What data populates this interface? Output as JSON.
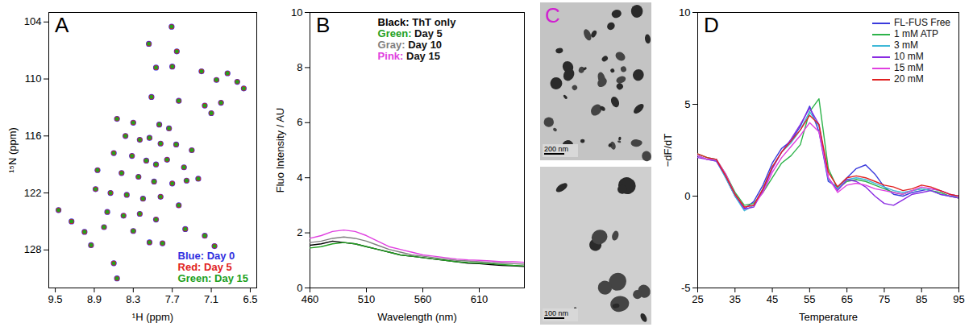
{
  "chart_data": [
    {
      "type": "scatter",
      "panel_label": "A",
      "marker": "circle",
      "grid": false,
      "legend": "bottom-right",
      "x_label": "¹H (ppm)",
      "y_label": "¹⁵N (ppm)",
      "xlim": [
        9.6,
        6.4
      ],
      "xticks": [
        9.5,
        8.9,
        8.3,
        7.7,
        7.1,
        6.5
      ],
      "ylim": [
        132,
        103
      ],
      "yticks": [
        104,
        110,
        116,
        122,
        128
      ],
      "series": [
        {
          "name": "Blue: Day 0",
          "color": "#3030e0",
          "x": [
            7.71,
            8.06,
            7.63,
            7.95,
            7.7,
            7.25,
            7.02,
            6.85,
            6.7,
            6.6,
            8.02,
            7.6,
            7.2,
            6.95,
            7.1,
            8.55,
            8.3,
            7.9,
            7.75,
            8.42,
            8.2,
            8.05,
            7.88,
            7.64,
            7.4,
            8.6,
            8.32,
            8.1,
            7.95,
            7.78,
            7.52,
            8.85,
            8.48,
            8.22,
            7.98,
            7.7,
            7.48,
            7.3,
            8.88,
            8.65,
            8.4,
            8.15,
            7.88,
            7.6,
            8.7,
            8.45,
            8.2,
            7.95,
            8.75,
            8.3,
            7.5,
            9.45,
            9.25,
            9.05,
            8.6,
            8.55,
            8.95,
            8.05,
            7.85,
            7.05,
            7.2
          ],
          "y": [
            104.5,
            106.3,
            107.1,
            108.8,
            108.7,
            109.2,
            110.1,
            109.4,
            110.3,
            111.0,
            111.9,
            112.3,
            112.8,
            112.5,
            113.6,
            114.2,
            114.6,
            114.8,
            115.2,
            116.0,
            116.4,
            116.2,
            116.8,
            116.9,
            117.5,
            117.8,
            118.1,
            118.6,
            119.0,
            118.5,
            119.3,
            119.6,
            119.9,
            120.3,
            120.8,
            121.0,
            120.7,
            120.5,
            121.6,
            122.0,
            122.2,
            122.6,
            122.4,
            123.3,
            124.0,
            124.4,
            124.2,
            124.8,
            125.6,
            126.0,
            125.8,
            123.8,
            125.0,
            126.1,
            129.4,
            131.0,
            127.5,
            127.2,
            127.3,
            127.6,
            126.5
          ]
        },
        {
          "name": "Red: Day 5",
          "color": "#e02020",
          "x": [
            7.71,
            8.06,
            7.63,
            7.95,
            7.7,
            7.25,
            7.02,
            6.85,
            6.7,
            6.6,
            8.02,
            7.6,
            7.2,
            6.95,
            7.1,
            8.55,
            8.3,
            7.9,
            7.75,
            8.42,
            8.2,
            8.05,
            7.88,
            7.64,
            7.4,
            8.6,
            8.32,
            8.1,
            7.95,
            7.78,
            7.52,
            8.85,
            8.48,
            8.22,
            7.98,
            7.7,
            7.48,
            7.3,
            8.88,
            8.65,
            8.4,
            8.15,
            7.88,
            7.6,
            8.7,
            8.45,
            8.2,
            7.95,
            8.75,
            8.3,
            7.5,
            9.45,
            9.25,
            9.05,
            8.6,
            8.55,
            8.95,
            8.05,
            7.85,
            7.05,
            7.2
          ],
          "y": [
            104.5,
            106.3,
            107.1,
            108.8,
            108.7,
            109.2,
            110.1,
            109.4,
            110.3,
            111.0,
            111.9,
            112.3,
            112.8,
            112.5,
            113.6,
            114.2,
            114.6,
            114.8,
            115.2,
            116.0,
            116.4,
            116.2,
            116.8,
            116.9,
            117.5,
            117.8,
            118.1,
            118.6,
            119.0,
            118.5,
            119.3,
            119.6,
            119.9,
            120.3,
            120.8,
            121.0,
            120.7,
            120.5,
            121.6,
            122.0,
            122.2,
            122.6,
            122.4,
            123.3,
            124.0,
            124.4,
            124.2,
            124.8,
            125.6,
            126.0,
            125.8,
            123.8,
            125.0,
            126.1,
            129.4,
            131.0,
            127.5,
            127.2,
            127.3,
            127.6,
            126.5
          ]
        },
        {
          "name": "Green: Day 15",
          "color": "#20a020",
          "x": [
            7.71,
            8.06,
            7.63,
            7.95,
            7.7,
            7.25,
            7.02,
            6.85,
            6.7,
            6.6,
            8.02,
            7.6,
            7.2,
            6.95,
            7.1,
            8.55,
            8.3,
            7.9,
            7.75,
            8.42,
            8.2,
            8.05,
            7.88,
            7.64,
            7.4,
            8.6,
            8.32,
            8.1,
            7.95,
            7.78,
            7.52,
            8.85,
            8.48,
            8.22,
            7.98,
            7.7,
            7.48,
            7.3,
            8.88,
            8.65,
            8.4,
            8.15,
            7.88,
            7.6,
            8.7,
            8.45,
            8.2,
            7.95,
            8.75,
            8.3,
            7.5,
            9.45,
            9.25,
            9.05,
            8.6,
            8.55,
            8.95,
            8.05,
            7.85,
            7.05,
            7.2
          ],
          "y": [
            104.5,
            106.3,
            107.1,
            108.8,
            108.7,
            109.2,
            110.1,
            109.4,
            110.3,
            111.0,
            111.9,
            112.3,
            112.8,
            112.5,
            113.6,
            114.2,
            114.6,
            114.8,
            115.2,
            116.0,
            116.4,
            116.2,
            116.8,
            116.9,
            117.5,
            117.8,
            118.1,
            118.6,
            119.0,
            118.5,
            119.3,
            119.6,
            119.9,
            120.3,
            120.8,
            121.0,
            120.7,
            120.5,
            121.6,
            122.0,
            122.2,
            122.6,
            122.4,
            123.3,
            124.0,
            124.4,
            124.2,
            124.8,
            125.6,
            126.0,
            125.8,
            123.8,
            125.0,
            126.1,
            129.4,
            131.0,
            127.5,
            127.2,
            127.3,
            127.6,
            126.5
          ]
        }
      ]
    },
    {
      "type": "line",
      "panel_label": "B",
      "grid": false,
      "legend": "top",
      "line_style": "solid",
      "x_label": "Wavelength (nm)",
      "y_label": "Fluo Intensity / AU",
      "xlim": [
        460,
        650
      ],
      "xticks": [
        460,
        510,
        560,
        610
      ],
      "ylim": [
        0,
        10
      ],
      "yticks": [
        0,
        2,
        4,
        6,
        8,
        10
      ],
      "x": [
        460,
        470,
        480,
        490,
        500,
        510,
        520,
        530,
        540,
        550,
        560,
        570,
        580,
        590,
        600,
        610,
        620,
        630,
        640,
        650
      ],
      "series": [
        {
          "name": "Black: ThT only",
          "color": "#000000",
          "values": [
            1.55,
            1.6,
            1.7,
            1.65,
            1.6,
            1.5,
            1.4,
            1.3,
            1.2,
            1.15,
            1.1,
            1.05,
            1.0,
            0.95,
            0.9,
            0.88,
            0.85,
            0.82,
            0.8,
            0.78
          ]
        },
        {
          "name": "Green: Day 5",
          "color": "#22a022",
          "values": [
            1.45,
            1.5,
            1.6,
            1.65,
            1.6,
            1.5,
            1.4,
            1.3,
            1.2,
            1.15,
            1.1,
            1.05,
            1.0,
            0.95,
            0.92,
            0.9,
            0.88,
            0.85,
            0.82,
            0.8
          ]
        },
        {
          "name": "Gray: Day 10",
          "color": "#808080",
          "values": [
            1.65,
            1.7,
            1.8,
            1.85,
            1.8,
            1.7,
            1.55,
            1.4,
            1.3,
            1.2,
            1.15,
            1.1,
            1.05,
            1.0,
            0.98,
            0.95,
            0.92,
            0.9,
            0.88,
            0.86
          ]
        },
        {
          "name": "Pink: Day 15",
          "color": "#e040e0",
          "values": [
            1.8,
            1.9,
            2.05,
            2.1,
            2.05,
            1.9,
            1.7,
            1.5,
            1.4,
            1.3,
            1.2,
            1.15,
            1.1,
            1.05,
            1.02,
            1.0,
            0.98,
            0.95,
            0.95,
            0.93
          ]
        }
      ]
    },
    {
      "type": "image",
      "panel_label": "C",
      "images": [
        {
          "scale_bar": "200 nm"
        },
        {
          "scale_bar": "100 nm"
        }
      ]
    },
    {
      "type": "line",
      "panel_label": "D",
      "grid": false,
      "legend": "top-right",
      "line_style": "solid",
      "x_label": "Temperature",
      "y_label": "−dF/dT",
      "xlim": [
        25,
        95
      ],
      "xticks": [
        25,
        35,
        45,
        55,
        65,
        75,
        85,
        95
      ],
      "ylim": [
        -5,
        10
      ],
      "yticks": [
        -5,
        0,
        5,
        10
      ],
      "x": [
        25,
        27.5,
        30,
        32.5,
        35,
        37.5,
        40,
        42.5,
        45,
        47.5,
        50,
        52.5,
        55,
        57.5,
        60,
        62.5,
        65,
        67.5,
        70,
        72.5,
        75,
        77.5,
        80,
        82.5,
        85,
        87.5,
        90,
        92.5,
        95
      ],
      "series": [
        {
          "name": "FL-FUS Free",
          "color": "#3a3adc",
          "values": [
            2.2,
            2.0,
            2.0,
            1.0,
            0.0,
            -0.7,
            -0.3,
            0.6,
            1.8,
            2.6,
            3.0,
            3.8,
            4.9,
            3.5,
            0.8,
            0.5,
            1.0,
            1.5,
            1.7,
            1.2,
            0.5,
            0.1,
            0.0,
            0.2,
            0.3,
            0.4,
            0.3,
            0.1,
            0.0
          ]
        },
        {
          "name": "1 mM ATP",
          "color": "#2db34a",
          "values": [
            2.3,
            2.1,
            2.0,
            1.2,
            0.2,
            -0.5,
            -0.4,
            0.2,
            1.0,
            1.8,
            2.2,
            2.8,
            4.6,
            5.3,
            1.5,
            0.4,
            0.8,
            0.9,
            0.8,
            0.6,
            0.4,
            0.2,
            0.1,
            0.3,
            0.4,
            0.3,
            0.2,
            0.0,
            -0.1
          ]
        },
        {
          "name": "3 mM",
          "color": "#3fb8d8",
          "values": [
            2.2,
            2.0,
            1.9,
            1.0,
            0.0,
            -0.8,
            -0.5,
            0.4,
            1.6,
            2.4,
            2.9,
            3.6,
            4.6,
            3.8,
            0.9,
            0.4,
            0.9,
            1.0,
            0.9,
            0.7,
            0.5,
            0.3,
            0.2,
            0.3,
            0.4,
            0.3,
            0.1,
            0.0,
            0.0
          ]
        },
        {
          "name": "10 mM",
          "color": "#8a2be2",
          "values": [
            2.1,
            2.0,
            1.9,
            1.1,
            0.1,
            -0.7,
            -0.6,
            0.3,
            1.5,
            2.4,
            3.1,
            3.9,
            4.8,
            3.9,
            1.0,
            0.3,
            0.9,
            0.8,
            0.5,
            0.0,
            -0.4,
            -0.5,
            -0.2,
            0.1,
            0.2,
            0.3,
            0.1,
            0.0,
            -0.1
          ]
        },
        {
          "name": "15 mM",
          "color": "#e040e0",
          "values": [
            2.2,
            2.0,
            2.0,
            1.2,
            0.1,
            -0.6,
            -0.5,
            0.2,
            1.3,
            2.1,
            2.7,
            3.3,
            4.0,
            3.5,
            1.0,
            0.2,
            0.6,
            0.7,
            0.6,
            0.4,
            0.3,
            0.2,
            0.1,
            0.3,
            0.5,
            0.4,
            0.3,
            0.1,
            0.0
          ]
        },
        {
          "name": "20 mM",
          "color": "#e02020",
          "values": [
            2.3,
            2.1,
            2.0,
            1.1,
            0.1,
            -0.6,
            -0.5,
            0.4,
            1.6,
            2.4,
            3.0,
            3.6,
            4.4,
            3.9,
            1.3,
            0.5,
            1.0,
            1.1,
            1.0,
            0.8,
            0.6,
            0.5,
            0.3,
            0.4,
            0.6,
            0.5,
            0.3,
            0.1,
            0.0
          ]
        }
      ]
    }
  ]
}
